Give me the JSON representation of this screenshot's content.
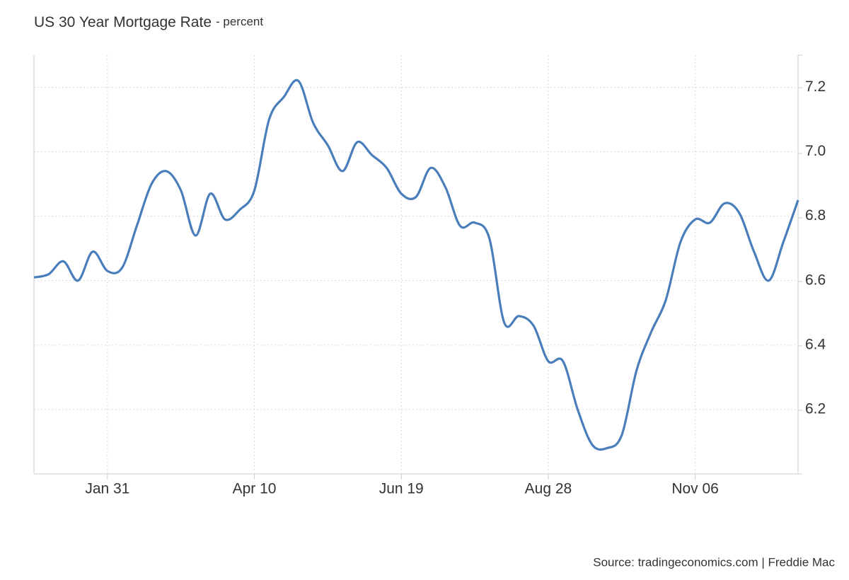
{
  "chart_data": {
    "type": "line",
    "title": "US 30 Year Mortgage Rate",
    "subtitle": "- percent",
    "source": "Source: tradingeconomics.com | Freddie Mac",
    "categories": [
      null,
      null,
      null,
      null,
      null,
      "Jan 31",
      null,
      null,
      null,
      null,
      null,
      null,
      null,
      null,
      null,
      "Apr 10",
      null,
      null,
      null,
      null,
      null,
      null,
      null,
      null,
      null,
      "Jun 19",
      null,
      null,
      null,
      null,
      null,
      null,
      null,
      null,
      null,
      "Aug 28",
      null,
      null,
      null,
      null,
      null,
      null,
      null,
      null,
      null,
      "Nov 06",
      null,
      null,
      null,
      null,
      null,
      null,
      null
    ],
    "series": [
      {
        "name": "US 30 Year Mortgage Rate",
        "color": "#4a7ebb",
        "values": [
          6.61,
          6.62,
          6.66,
          6.6,
          6.69,
          6.63,
          6.64,
          6.77,
          6.9,
          6.94,
          6.88,
          6.74,
          6.87,
          6.79,
          6.82,
          6.88,
          7.1,
          7.17,
          7.22,
          7.09,
          7.02,
          6.94,
          7.03,
          6.99,
          6.95,
          6.87,
          6.86,
          6.95,
          6.89,
          6.77,
          6.78,
          6.73,
          6.47,
          6.49,
          6.46,
          6.35,
          6.35,
          6.2,
          6.09,
          6.08,
          6.12,
          6.32,
          6.44,
          6.54,
          6.72,
          6.79,
          6.78,
          6.84,
          6.81,
          6.69,
          6.6,
          6.72,
          6.85
        ]
      }
    ],
    "ylim": [
      6.0,
      7.3
    ],
    "yticks": [
      6.2,
      6.4,
      6.6,
      6.8,
      {
        "value": 7,
        "label": "7.0"
      },
      7.2
    ],
    "grid": true
  }
}
